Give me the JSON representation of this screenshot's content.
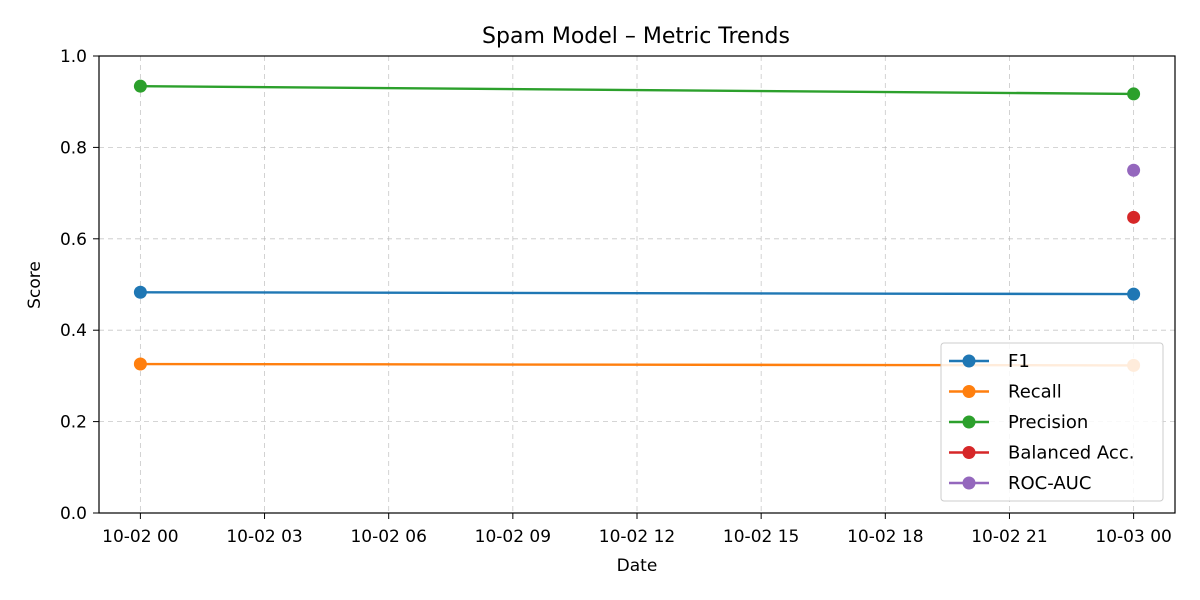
{
  "chart_data": {
    "type": "line",
    "title": "Spam Model – Metric Trends",
    "xlabel": "Date",
    "ylabel": "Score",
    "ylim": [
      0,
      1
    ],
    "xlim": [
      "2024-10-01T23:00",
      "2024-10-03T01:00"
    ],
    "x_ticks": [
      "10-02 00",
      "10-02 03",
      "10-02 06",
      "10-02 09",
      "10-02 12",
      "10-02 15",
      "10-02 18",
      "10-02 21",
      "10-03 00"
    ],
    "y_ticks": [
      "0.0",
      "0.2",
      "0.4",
      "0.6",
      "0.8",
      "1.0"
    ],
    "grid": true,
    "grid_style": "dashed",
    "legend_position": "lower-right",
    "x": [
      "2024-10-02T00:00",
      "2024-10-03T00:00"
    ],
    "series": [
      {
        "name": "F1",
        "color": "#1f77b4",
        "values": [
          0.483,
          0.479
        ]
      },
      {
        "name": "Recall",
        "color": "#ff7f0e",
        "values": [
          0.326,
          0.323
        ]
      },
      {
        "name": "Precision",
        "color": "#2ca02c",
        "values": [
          0.934,
          0.917
        ]
      },
      {
        "name": "Balanced Acc.",
        "color": "#d62728",
        "values": [
          null,
          0.647
        ]
      },
      {
        "name": "ROC-AUC",
        "color": "#9467bd",
        "values": [
          null,
          0.75
        ]
      }
    ]
  }
}
